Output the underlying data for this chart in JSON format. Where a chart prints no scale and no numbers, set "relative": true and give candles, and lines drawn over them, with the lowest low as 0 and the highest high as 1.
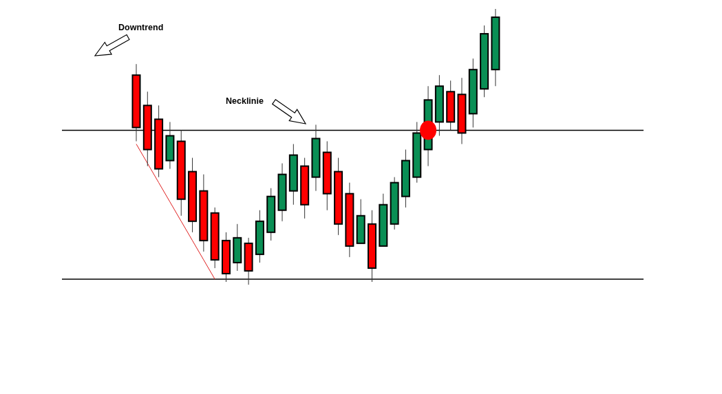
{
  "chart_data": {
    "type": "candlestick",
    "relative": true,
    "categories": [
      null,
      null,
      null,
      null,
      null,
      null,
      null,
      null,
      null,
      null,
      null,
      null,
      null,
      null,
      null,
      null,
      null,
      null,
      null,
      null,
      null,
      null,
      null,
      null,
      null,
      null,
      null,
      null,
      null,
      null,
      null,
      null,
      null
    ],
    "ohlc": [
      [
        0.76,
        0.8,
        0.52,
        0.57
      ],
      [
        0.65,
        0.7,
        0.43,
        0.49
      ],
      [
        0.6,
        0.65,
        0.39,
        0.42
      ],
      [
        0.45,
        0.59,
        0.42,
        0.54
      ],
      [
        0.52,
        0.56,
        0.25,
        0.31
      ],
      [
        0.41,
        0.46,
        0.19,
        0.23
      ],
      [
        0.34,
        0.4,
        0.12,
        0.16
      ],
      [
        0.26,
        0.28,
        0.06,
        0.09
      ],
      [
        0.16,
        0.19,
        0.01,
        0.04
      ],
      [
        0.08,
        0.22,
        0.05,
        0.17
      ],
      [
        0.15,
        0.17,
        0,
        0.05
      ],
      [
        0.11,
        0.27,
        0.08,
        0.23
      ],
      [
        0.19,
        0.35,
        0.16,
        0.32
      ],
      [
        0.27,
        0.44,
        0.23,
        0.4
      ],
      [
        0.34,
        0.51,
        0.29,
        0.47
      ],
      [
        0.43,
        0.46,
        0.24,
        0.29
      ],
      [
        0.39,
        0.58,
        0.34,
        0.53
      ],
      [
        0.48,
        0.52,
        0.27,
        0.33
      ],
      [
        0.41,
        0.46,
        0.18,
        0.22
      ],
      [
        0.33,
        0.37,
        0.1,
        0.14
      ],
      [
        0.15,
        0.31,
        0.15,
        0.25
      ],
      [
        0.22,
        0.27,
        0.01,
        0.06
      ],
      [
        0.14,
        0.33,
        0.14,
        0.29
      ],
      [
        0.22,
        0.39,
        0.2,
        0.37
      ],
      [
        0.32,
        0.49,
        0.28,
        0.45
      ],
      [
        0.39,
        0.59,
        0.37,
        0.55
      ],
      [
        0.49,
        0.72,
        0.43,
        0.67
      ],
      [
        0.59,
        0.76,
        0.54,
        0.72
      ],
      [
        0.7,
        0.74,
        0.56,
        0.59
      ],
      [
        0.69,
        0.75,
        0.51,
        0.55
      ],
      [
        0.62,
        0.82,
        0.57,
        0.78
      ],
      [
        0.71,
        0.94,
        0.68,
        0.91
      ],
      [
        0.78,
        1,
        0.72,
        0.97
      ]
    ],
    "colors": [
      "#ff0000",
      "#ff0000",
      "#ff0000",
      "#0a8f55",
      "#ff0000",
      "#ff0000",
      "#ff0000",
      "#ff0000",
      "#ff0000",
      "#0a8f55",
      "#ff0000",
      "#0a8f55",
      "#0a8f55",
      "#0a8f55",
      "#0a8f55",
      "#ff0000",
      "#0a8f55",
      "#ff0000",
      "#ff0000",
      "#ff0000",
      "#0a8f55",
      "#ff0000",
      "#0a8f55",
      "#0a8f55",
      "#0a8f55",
      "#0a8f55",
      "#0a8f55",
      "#0a8f55",
      "#ff0000",
      "#ff0000",
      "#0a8f55",
      "#0a8f55",
      "#0a8f55"
    ],
    "series": [
      {
        "type": "line",
        "values": [
          0.51,
          0.44,
          0.37,
          0.3,
          0.23,
          0.16,
          0.09,
          0.02,
          null,
          null,
          null,
          null,
          null,
          null,
          null,
          null,
          null,
          null,
          null,
          null,
          null,
          null,
          null,
          null,
          null,
          null,
          null,
          null,
          null,
          null,
          null,
          null,
          null
        ],
        "color": "#e02020"
      },
      {
        "type": "scatter",
        "values": [
          null,
          null,
          null,
          null,
          null,
          null,
          null,
          null,
          null,
          null,
          null,
          null,
          null,
          null,
          null,
          null,
          null,
          null,
          null,
          null,
          null,
          null,
          null,
          null,
          null,
          null,
          0.56,
          null,
          null,
          null,
          null,
          null,
          null
        ],
        "color": "#ff0000",
        "marker": "circle"
      }
    ],
    "ref_lines": [
      {
        "axis": "y",
        "value": 0.56,
        "color": "#000000"
      },
      {
        "axis": "y",
        "value": 0.02,
        "color": "#000000"
      }
    ],
    "annotations": [
      "Downtrend",
      "Necklinie"
    ]
  }
}
